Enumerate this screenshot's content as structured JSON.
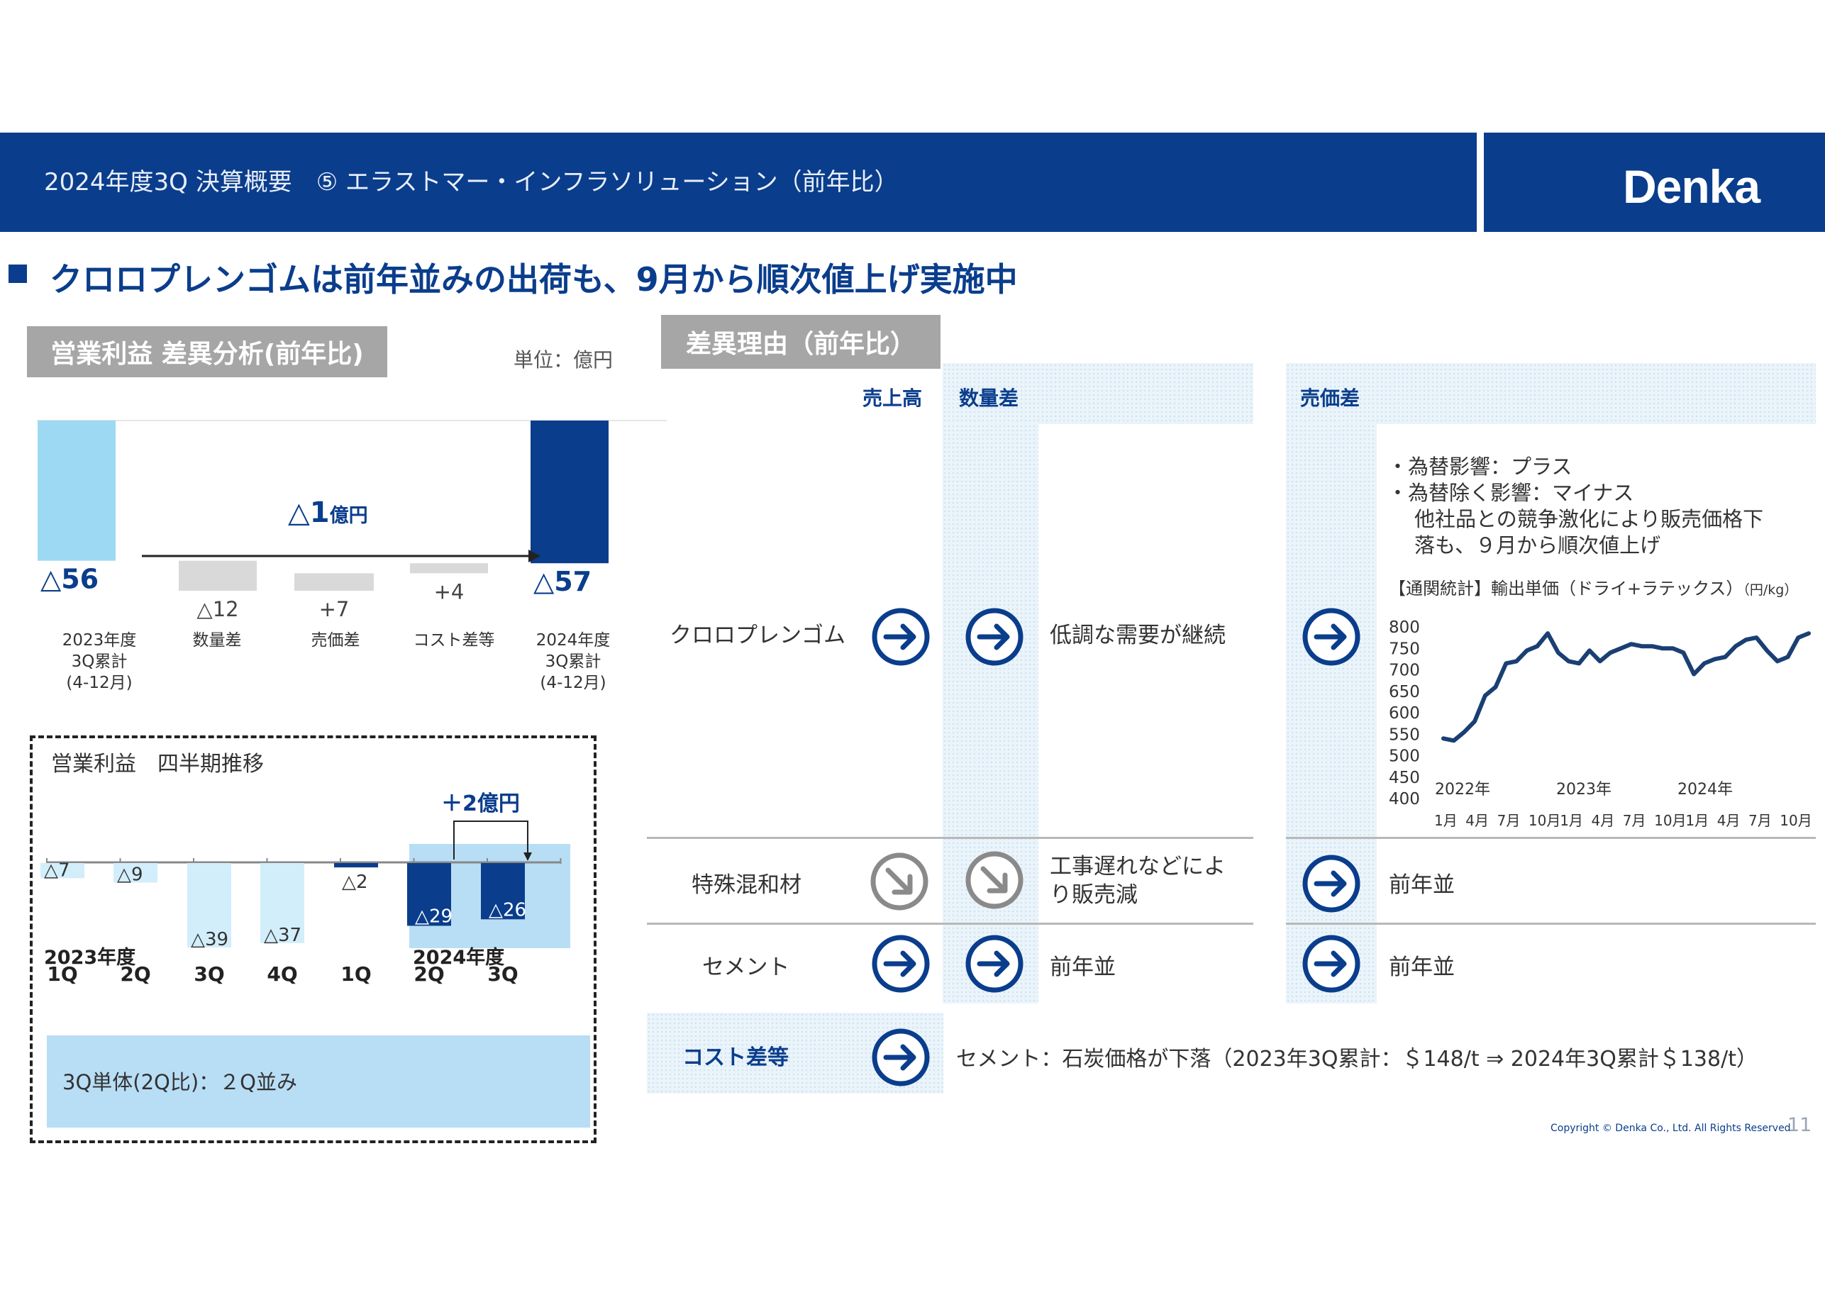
{
  "header": {
    "title": "2024年度3Q 決算概要　⑤ エラストマー・インフラソリューション（前年比）",
    "logo": "Denka"
  },
  "headline": "クロロプレンゴムは前年並みの出荷も、9月から順次値上げ実施中",
  "colors": {
    "brand_navy": "#0a3d8c",
    "light_blue": "#9dd9f3",
    "gray_bar": "#d9d9d9",
    "highlight": "#b8def5"
  },
  "left": {
    "section_label": "営業利益 差異分析(前年比)",
    "unit": "単位：億円",
    "waterfall_note": {
      "value": "△1",
      "unit": "億円"
    },
    "categories": [
      {
        "lines": [
          "2023年度",
          "3Q累計",
          "(4-12月)"
        ]
      },
      {
        "lines": [
          "数量差"
        ]
      },
      {
        "lines": [
          "売価差"
        ]
      },
      {
        "lines": [
          "コスト差等"
        ]
      },
      {
        "lines": [
          "2024年度",
          "3Q累計",
          "(4-12月)"
        ]
      }
    ],
    "value_labels": [
      "△56",
      "△12",
      "+7",
      "+4",
      "△57"
    ]
  },
  "quarterly": {
    "title": "営業利益　四半期推移",
    "note": "＋2億円",
    "value_labels": [
      "△7",
      "△9",
      "△39",
      "△37",
      "△2",
      "△29",
      "△26"
    ],
    "quarters": [
      "1Q",
      "2Q",
      "3Q",
      "4Q",
      "1Q",
      "2Q",
      "3Q"
    ],
    "year_labels": [
      "2023年度",
      "2024年度"
    ],
    "footer": "3Q単体(2Q比)：２Q並み"
  },
  "chart_data": [
    {
      "type": "bar",
      "title": "営業利益 差異分析(前年比)",
      "unit": "億円",
      "categories": [
        "2023年度3Q累計(4-12月)",
        "数量差",
        "売価差",
        "コスト差等",
        "2024年度3Q累計(4-12月)"
      ],
      "values": [
        -56,
        -12,
        7,
        4,
        -57
      ],
      "waterfall": true
    },
    {
      "type": "bar",
      "title": "営業利益　四半期推移",
      "categories": [
        "2023年度 1Q",
        "2Q",
        "3Q",
        "4Q",
        "2024年度 1Q",
        "2Q",
        "3Q"
      ],
      "values": [
        -7,
        -9,
        -39,
        -37,
        -2,
        -29,
        -26
      ]
    },
    {
      "type": "line",
      "title": "【通関統計】輸出単価（ドライ+ラテックス）（円/kg）",
      "ylim": [
        400,
        800
      ],
      "yticks": [
        400,
        450,
        500,
        550,
        600,
        650,
        700,
        750,
        800
      ],
      "series": [
        {
          "values": [
            540,
            535,
            555,
            580,
            640,
            660,
            715,
            720,
            745,
            755,
            785,
            740,
            720,
            715,
            745,
            720,
            740,
            750,
            760,
            755,
            755,
            750,
            750,
            740,
            690,
            715,
            725,
            730,
            755,
            770,
            775,
            745,
            720,
            730,
            775,
            785
          ]
        }
      ]
    }
  ],
  "right": {
    "section_label": "差異理由（前年比）",
    "col_uriagedaka": "売上高",
    "col_suryosa": "数量差",
    "col_baikasa": "売価差",
    "rows": [
      {
        "label": "クロロプレンゴム",
        "suryo_text": "低調な需要が継続"
      },
      {
        "label": "特殊混和材",
        "suryo_text_lines": [
          "工事遅れなどによ",
          "り販売減"
        ],
        "baika_text": "前年並"
      },
      {
        "label": "セメント",
        "suryo_text": "前年並",
        "baika_text": "前年並"
      }
    ],
    "cr_notes": [
      "・為替影響：プラス",
      "・為替除く影響：マイナス",
      "他社品との競争激化により販売価格下",
      "落も、９月から順次値上げ"
    ],
    "mini_chart": {
      "title": "【通関統計】輸出単価（ドライ+ラテックス）",
      "unit": "（円/kg）",
      "years": [
        "2022年",
        "2023年",
        "2024年"
      ],
      "months": [
        "1月",
        "4月",
        "7月",
        "10月",
        "1月",
        "4月",
        "7月",
        "10月",
        "1月",
        "4月",
        "7月",
        "10月"
      ]
    },
    "cost_label": "コスト差等",
    "cost_text": "セメント：石炭価格が下落（2023年3Q累計：＄148/t ⇒ 2024年3Q累計＄138/t）"
  },
  "footer": {
    "copyright": "Copyright © Denka Co., Ltd. All Rights Reserved.",
    "page": "11"
  },
  "icons": [
    "arrow-right-circle-icon",
    "arrow-down-right-circle-icon"
  ]
}
